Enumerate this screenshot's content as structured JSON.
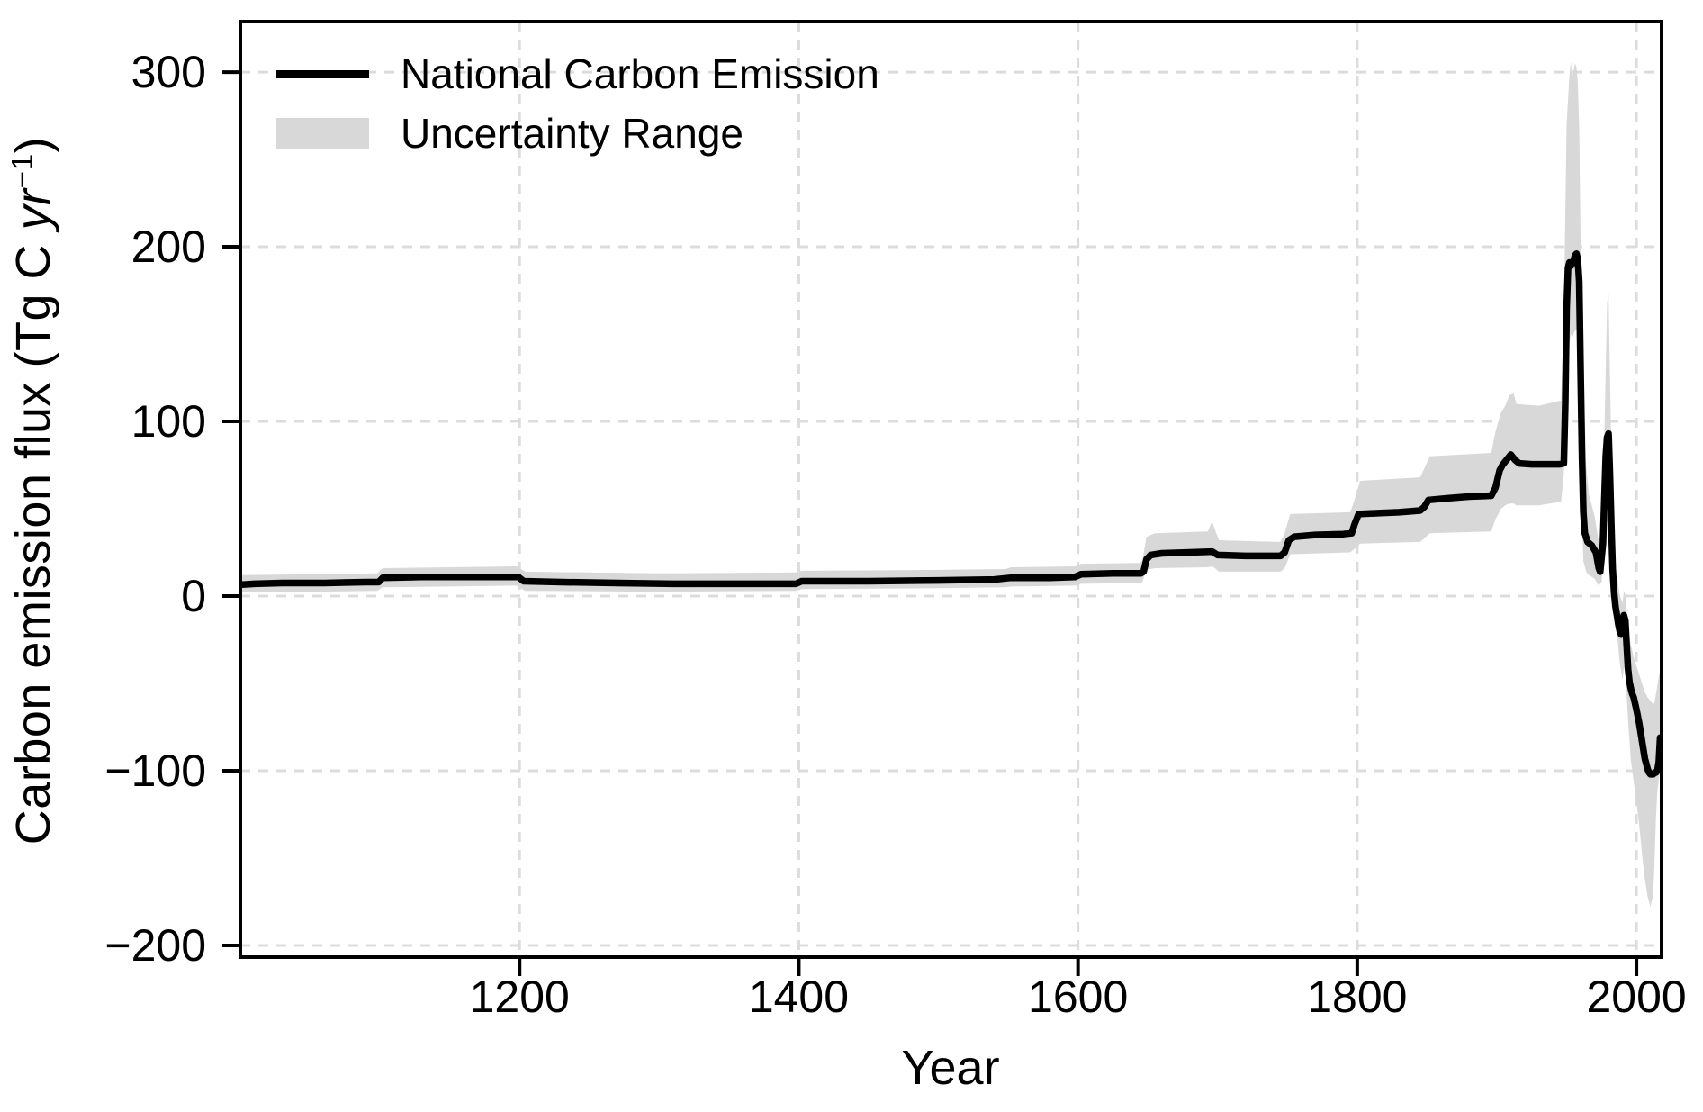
{
  "chart_data": {
    "type": "line",
    "title": "",
    "xlabel": "Year",
    "ylabel": "Carbon emission flux (Tg C yr−1)",
    "ylabel_parts": {
      "pre": "Carbon emission flux (Tg C ",
      "unit": "yr",
      "sup": "−1",
      "post": ")"
    },
    "xlim": [
      1000,
      2018
    ],
    "ylim": [
      -206.7,
      328.9
    ],
    "xticks": [
      1200,
      1400,
      1600,
      1800,
      2000
    ],
    "yticks": [
      300,
      200,
      100,
      0,
      -100,
      -200
    ],
    "grid": true,
    "grid_style": "dashed",
    "legend_position": "upper-left",
    "legend": [
      {
        "label": "National Carbon Emission",
        "type": "line"
      },
      {
        "label": "Uncertainty Range",
        "type": "band"
      }
    ],
    "series": [
      {
        "name": "National Carbon Emission",
        "color": "#000000",
        "points": [
          [
            1000,
            6.5
          ],
          [
            1010,
            7
          ],
          [
            1030,
            7.5
          ],
          [
            1060,
            7.5
          ],
          [
            1090,
            8
          ],
          [
            1099,
            8
          ],
          [
            1102,
            10.5
          ],
          [
            1130,
            11
          ],
          [
            1170,
            11
          ],
          [
            1199,
            11
          ],
          [
            1203,
            8.5
          ],
          [
            1230,
            8
          ],
          [
            1270,
            7.5
          ],
          [
            1310,
            7
          ],
          [
            1360,
            7
          ],
          [
            1398,
            7
          ],
          [
            1402,
            8.5
          ],
          [
            1450,
            8.5
          ],
          [
            1500,
            9
          ],
          [
            1540,
            9.5
          ],
          [
            1552,
            10.5
          ],
          [
            1580,
            10.5
          ],
          [
            1598,
            11
          ],
          [
            1602,
            12.5
          ],
          [
            1625,
            13
          ],
          [
            1645,
            13
          ],
          [
            1647,
            14
          ],
          [
            1649,
            21
          ],
          [
            1652,
            23.5
          ],
          [
            1660,
            24.5
          ],
          [
            1680,
            25
          ],
          [
            1696,
            25.5
          ],
          [
            1700,
            23.5
          ],
          [
            1720,
            23
          ],
          [
            1745,
            23
          ],
          [
            1748,
            25
          ],
          [
            1751,
            32
          ],
          [
            1755,
            34
          ],
          [
            1770,
            35
          ],
          [
            1790,
            35.5
          ],
          [
            1796,
            36
          ],
          [
            1798,
            41
          ],
          [
            1801,
            47
          ],
          [
            1815,
            47.5
          ],
          [
            1830,
            48
          ],
          [
            1845,
            49
          ],
          [
            1848,
            51
          ],
          [
            1851,
            55
          ],
          [
            1865,
            56
          ],
          [
            1880,
            57
          ],
          [
            1896,
            57.5
          ],
          [
            1899,
            62
          ],
          [
            1902,
            72
          ],
          [
            1904,
            75
          ],
          [
            1907,
            78
          ],
          [
            1910,
            81
          ],
          [
            1913,
            78
          ],
          [
            1916,
            76
          ],
          [
            1925,
            75.5
          ],
          [
            1935,
            75.5
          ],
          [
            1945,
            75.5
          ],
          [
            1948,
            76
          ],
          [
            1949,
            110
          ],
          [
            1950,
            165
          ],
          [
            1951,
            188
          ],
          [
            1952,
            191
          ],
          [
            1953,
            189
          ],
          [
            1955,
            192
          ],
          [
            1956,
            195
          ],
          [
            1957,
            196
          ],
          [
            1958,
            193
          ],
          [
            1959,
            180
          ],
          [
            1960,
            130
          ],
          [
            1961,
            80
          ],
          [
            1962,
            48
          ],
          [
            1963,
            36
          ],
          [
            1965,
            31
          ],
          [
            1968,
            29
          ],
          [
            1971,
            25
          ],
          [
            1973,
            16
          ],
          [
            1974,
            14
          ],
          [
            1976,
            30
          ],
          [
            1977,
            55
          ],
          [
            1978,
            80
          ],
          [
            1979,
            91
          ],
          [
            1980,
            93
          ],
          [
            1981,
            70
          ],
          [
            1982,
            40
          ],
          [
            1983,
            15
          ],
          [
            1984,
            2
          ],
          [
            1985,
            -6
          ],
          [
            1986,
            -11
          ],
          [
            1987,
            -16
          ],
          [
            1988,
            -20
          ],
          [
            1989,
            -22
          ],
          [
            1990,
            -17
          ],
          [
            1991,
            -11
          ],
          [
            1992,
            -14
          ],
          [
            1993,
            -28
          ],
          [
            1994,
            -42
          ],
          [
            1995,
            -49
          ],
          [
            1996,
            -53
          ],
          [
            1997,
            -56
          ],
          [
            1998,
            -58
          ],
          [
            2000,
            -65
          ],
          [
            2002,
            -73
          ],
          [
            2004,
            -83
          ],
          [
            2006,
            -93
          ],
          [
            2008,
            -99
          ],
          [
            2009,
            -101
          ],
          [
            2010,
            -102
          ],
          [
            2012,
            -102
          ],
          [
            2013,
            -101
          ],
          [
            2014,
            -101
          ],
          [
            2015,
            -100
          ],
          [
            2016,
            -95
          ],
          [
            2017,
            -81
          ]
        ]
      }
    ],
    "band": {
      "name": "Uncertainty Range",
      "color": "#d8d8d8",
      "points": [
        [
          1000,
          2,
          12
        ],
        [
          1050,
          2.5,
          12.5
        ],
        [
          1098,
          3,
          13
        ],
        [
          1102,
          5,
          16
        ],
        [
          1150,
          5.5,
          16.5
        ],
        [
          1198,
          6,
          17
        ],
        [
          1204,
          3,
          14
        ],
        [
          1300,
          2.5,
          13
        ],
        [
          1398,
          3,
          13.5
        ],
        [
          1402,
          4,
          14.5
        ],
        [
          1500,
          4.5,
          15
        ],
        [
          1548,
          5,
          15.5
        ],
        [
          1552,
          5.5,
          16.5
        ],
        [
          1598,
          6,
          17
        ],
        [
          1602,
          7,
          18.5
        ],
        [
          1644,
          7.5,
          19
        ],
        [
          1646,
          8,
          20
        ],
        [
          1649,
          15,
          34
        ],
        [
          1655,
          16,
          36
        ],
        [
          1693,
          16.5,
          37
        ],
        [
          1696,
          17,
          43
        ],
        [
          1698,
          16,
          38
        ],
        [
          1701,
          14,
          32
        ],
        [
          1745,
          14,
          31
        ],
        [
          1748,
          16,
          36
        ],
        [
          1752,
          24,
          47
        ],
        [
          1795,
          25,
          48
        ],
        [
          1798,
          27,
          55
        ],
        [
          1802,
          30,
          66
        ],
        [
          1845,
          31,
          68
        ],
        [
          1848,
          33,
          73
        ],
        [
          1852,
          36,
          80
        ],
        [
          1896,
          37,
          82
        ],
        [
          1899,
          44,
          94
        ],
        [
          1903,
          50,
          105
        ],
        [
          1906,
          52,
          109
        ],
        [
          1909,
          53,
          115
        ],
        [
          1912,
          53,
          116
        ],
        [
          1914,
          52,
          110
        ],
        [
          1930,
          52,
          109
        ],
        [
          1946,
          54,
          112
        ],
        [
          1948,
          70,
          160
        ],
        [
          1950,
          120,
          270
        ],
        [
          1952,
          145,
          298
        ],
        [
          1953,
          150,
          306
        ],
        [
          1954,
          148,
          297
        ],
        [
          1956,
          152,
          305
        ],
        [
          1957,
          153,
          303
        ],
        [
          1958,
          150,
          294
        ],
        [
          1959,
          135,
          268
        ],
        [
          1960,
          90,
          205
        ],
        [
          1961,
          45,
          158
        ],
        [
          1962,
          20,
          128
        ],
        [
          1964,
          14,
          75
        ],
        [
          1966,
          12,
          58
        ],
        [
          1970,
          10,
          46
        ],
        [
          1973,
          6,
          31
        ],
        [
          1975,
          8,
          40
        ],
        [
          1977,
          25,
          92
        ],
        [
          1978,
          35,
          132
        ],
        [
          1979,
          42,
          168
        ],
        [
          1980,
          44,
          174
        ],
        [
          1981,
          35,
          128
        ],
        [
          1982,
          15,
          84
        ],
        [
          1983,
          5,
          45
        ],
        [
          1984,
          -5,
          26
        ],
        [
          1986,
          -20,
          12
        ],
        [
          1988,
          -38,
          1
        ],
        [
          1990,
          -48,
          -4
        ],
        [
          1991,
          -41,
          3
        ],
        [
          1992,
          -43,
          1
        ],
        [
          1994,
          -71,
          -18
        ],
        [
          1996,
          -94,
          -28
        ],
        [
          1998,
          -106,
          -35
        ],
        [
          2000,
          -118,
          -40
        ],
        [
          2002,
          -131,
          -45
        ],
        [
          2004,
          -148,
          -50
        ],
        [
          2006,
          -162,
          -55
        ],
        [
          2008,
          -172,
          -58
        ],
        [
          2010,
          -178,
          -60
        ],
        [
          2012,
          -171,
          -62
        ],
        [
          2013,
          -152,
          -61
        ],
        [
          2014,
          -126,
          -56
        ],
        [
          2015,
          -112,
          -51
        ],
        [
          2016,
          -105,
          -46
        ],
        [
          2017,
          -100,
          -43
        ]
      ]
    },
    "colors": {
      "line": "#000000",
      "band": "#d8d8d8",
      "grid": "#dcdcdc",
      "spine": "#000000",
      "background": "#ffffff"
    }
  }
}
